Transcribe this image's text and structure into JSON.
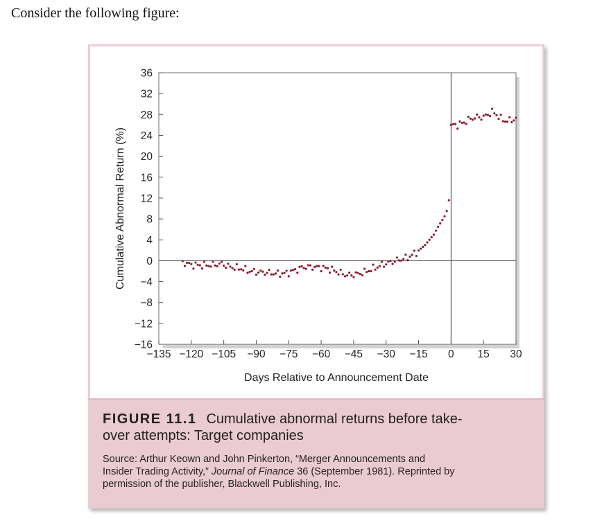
{
  "intro": {
    "text": "Consider the following figure:"
  },
  "caption": {
    "figure_label": "FIGURE 11.1",
    "title_line1": "Cumulative abnormal returns before take-",
    "title_line2": "over attempts: Target companies",
    "source_part1": "Source: Arthur Keown and John Pinkerton, “Merger Announcements and",
    "source_part2": "Insider Trading Activity,” ",
    "source_journal": "Journal of Finance",
    "source_part3": " 36 (September 1981). Reprinted by",
    "source_part4": "permission of the publisher, Blackwell Publishing, Inc."
  },
  "chart_data": {
    "type": "scatter",
    "xlabel": "Days Relative to Announcement Date",
    "ylabel": "Cumulative Abnormal Return (%)",
    "xlim": [
      -135,
      30
    ],
    "ylim": [
      -16,
      36
    ],
    "x_ticks": [
      "−135",
      "−120",
      "−105",
      "−90",
      "−75",
      "−60",
      "−45",
      "−30",
      "−15",
      "0",
      "15",
      "30"
    ],
    "y_ticks": [
      "36",
      "32",
      "28",
      "24",
      "20",
      "16",
      "12",
      "8",
      "4",
      "0",
      "−4",
      "−8",
      "−12",
      "−16"
    ],
    "reference_lines": {
      "x": 0,
      "y": 0
    },
    "grid": false,
    "marker_color": "#8b1a2b",
    "anchors": [
      [
        -124,
        -0.3
      ],
      [
        -120,
        -0.8
      ],
      [
        -115,
        -0.9
      ],
      [
        -110,
        -0.8
      ],
      [
        -106,
        -0.6
      ],
      [
        -102,
        -1.2
      ],
      [
        -97,
        -1.5
      ],
      [
        -93,
        -2.0
      ],
      [
        -89,
        -2.2
      ],
      [
        -84,
        -2.3
      ],
      [
        -80,
        -2.5
      ],
      [
        -76,
        -2.4
      ],
      [
        -72,
        -1.8
      ],
      [
        -68,
        -1.2
      ],
      [
        -64,
        -1.2
      ],
      [
        -60,
        -1.3
      ],
      [
        -56,
        -1.6
      ],
      [
        -52,
        -2.2
      ],
      [
        -48,
        -2.8
      ],
      [
        -44,
        -2.6
      ],
      [
        -40,
        -2.2
      ],
      [
        -36,
        -1.5
      ],
      [
        -32,
        -0.8
      ],
      [
        -28,
        -0.3
      ],
      [
        -24,
        0.2
      ],
      [
        -20,
        0.6
      ],
      [
        -16,
        1.6
      ],
      [
        -12,
        3.0
      ],
      [
        -8,
        5.0
      ],
      [
        -6,
        6.5
      ],
      [
        -4,
        7.8
      ],
      [
        -3,
        8.5
      ],
      [
        -2,
        9.5
      ],
      [
        -1,
        11.6
      ],
      [
        0,
        26.0
      ],
      [
        3,
        26.0
      ],
      [
        6,
        26.5
      ],
      [
        9,
        27.2
      ],
      [
        12,
        27.5
      ],
      [
        15,
        27.5
      ],
      [
        17,
        28.0
      ],
      [
        19,
        28.5
      ],
      [
        21,
        28.0
      ],
      [
        23,
        27.2
      ],
      [
        25,
        26.8
      ],
      [
        27,
        26.8
      ],
      [
        30,
        27.2
      ]
    ]
  }
}
